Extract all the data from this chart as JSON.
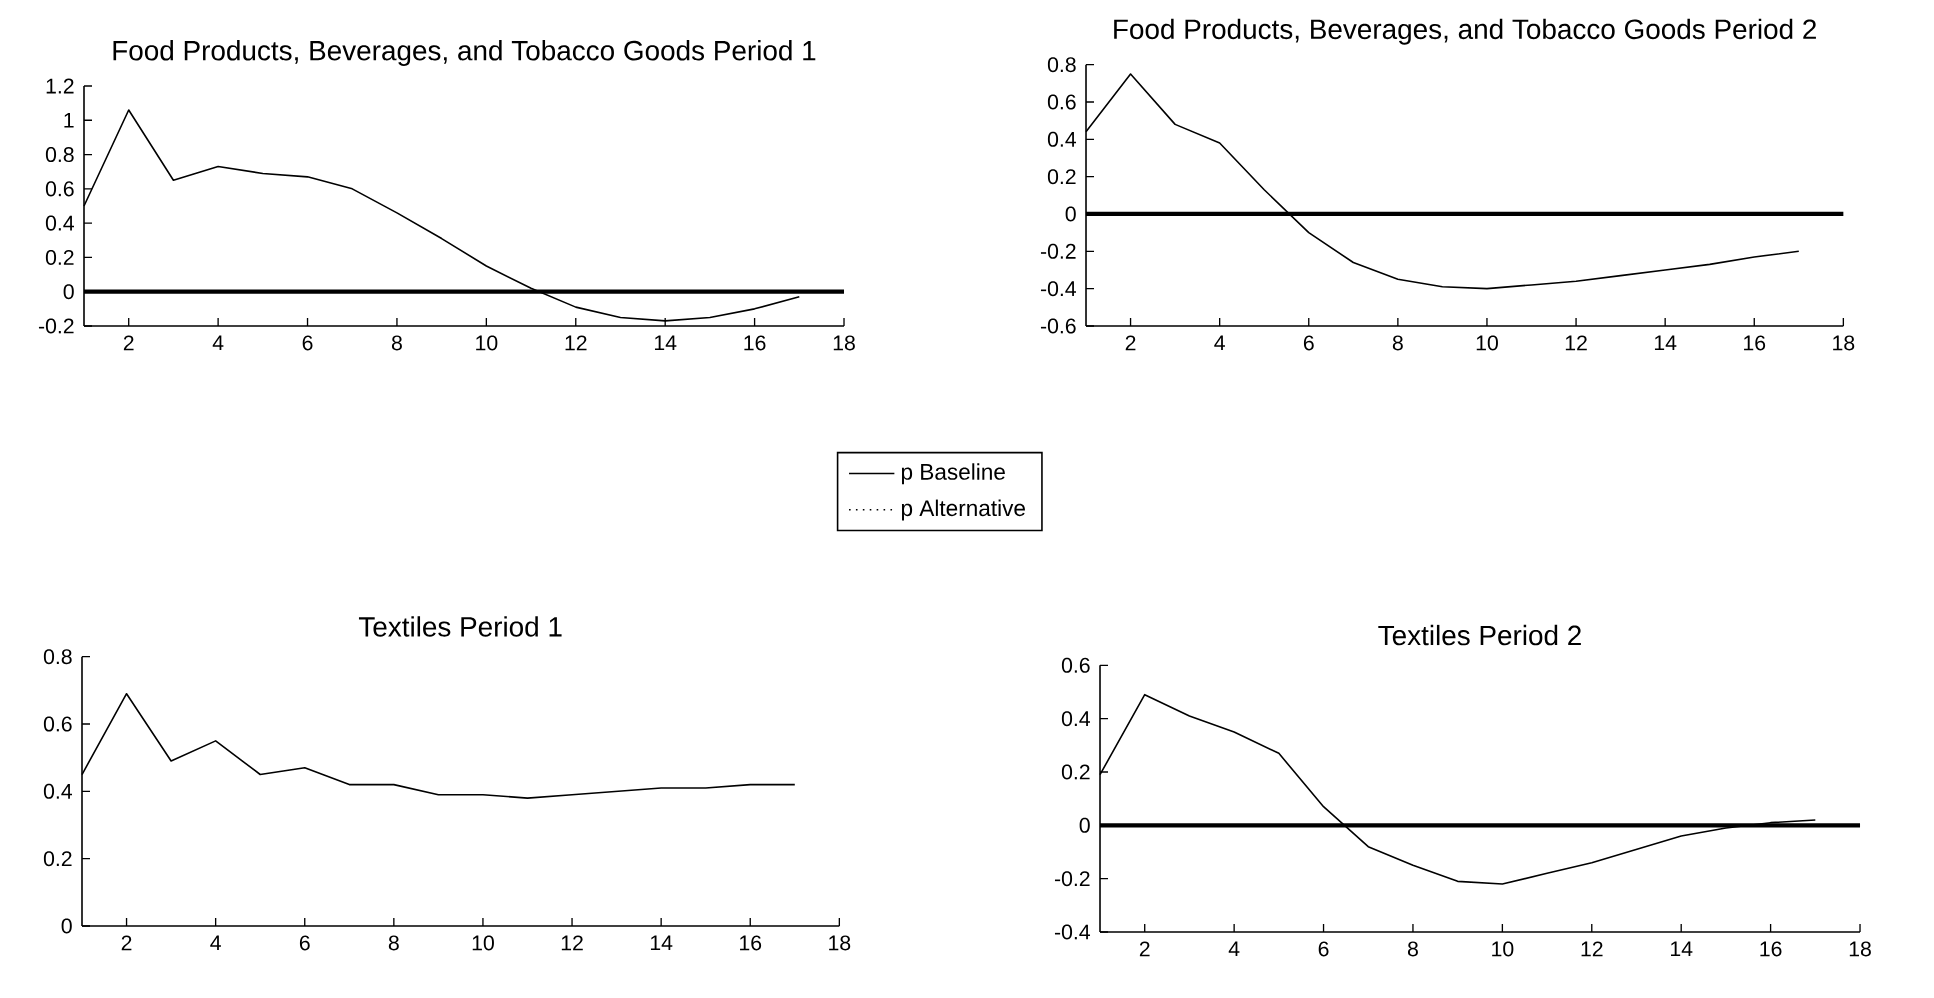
{
  "chart_data": [
    {
      "type": "line",
      "title": "Food Products, Beverages, and Tobacco Goods Period 1",
      "x": [
        1,
        2,
        3,
        4,
        5,
        6,
        7,
        8,
        9,
        10,
        11,
        12,
        13,
        14,
        15,
        16,
        17
      ],
      "series": [
        {
          "name": "p Baseline",
          "color": "#000000",
          "line_style": "solid",
          "values": [
            0.5,
            1.06,
            0.65,
            0.73,
            0.69,
            0.67,
            0.6,
            0.46,
            0.31,
            0.15,
            0.02,
            -0.09,
            -0.15,
            -0.17,
            -0.15,
            -0.1,
            -0.03
          ]
        },
        {
          "name": "p Alternative",
          "color": "#000000",
          "line_style": "dotted",
          "values": [
            null,
            null,
            null,
            null,
            null,
            null,
            null,
            null,
            null,
            null,
            null,
            null,
            null,
            null,
            null,
            null,
            null
          ]
        }
      ],
      "xlim": [
        1,
        18
      ],
      "xticks": [
        2,
        4,
        6,
        8,
        10,
        12,
        14,
        16,
        18
      ],
      "ylim": [
        -0.2,
        1.2
      ],
      "yticks": [
        -0.2,
        0,
        0.2,
        0.4,
        0.6,
        0.8,
        1,
        1.2
      ],
      "ref_lines": [
        {
          "axis": "y",
          "value": 0,
          "color": "#000000"
        }
      ],
      "legend": "bottom"
    },
    {
      "type": "line",
      "title": "Food Products, Beverages, and Tobacco Goods Period 2",
      "x": [
        1,
        2,
        3,
        4,
        5,
        6,
        7,
        8,
        9,
        10,
        11,
        12,
        13,
        14,
        15,
        16,
        17
      ],
      "series": [
        {
          "color": "#000000",
          "values": [
            0.44,
            0.75,
            0.48,
            0.38,
            0.13,
            -0.1,
            -0.26,
            -0.35,
            -0.39,
            -0.4,
            -0.38,
            -0.36,
            -0.33,
            -0.3,
            -0.27,
            -0.23,
            -0.2
          ]
        }
      ],
      "xlim": [
        1,
        18
      ],
      "xticks": [
        2,
        4,
        6,
        8,
        10,
        12,
        14,
        16,
        18
      ],
      "ylim": [
        -0.6,
        0.8
      ],
      "yticks": [
        -0.6,
        -0.4,
        -0.2,
        0,
        0.2,
        0.4,
        0.6,
        0.8
      ],
      "ref_lines": [
        {
          "axis": "y",
          "value": 0,
          "color": "#000000"
        }
      ]
    },
    {
      "type": "line",
      "title": "Textiles Period 1",
      "x": [
        1,
        2,
        3,
        4,
        5,
        6,
        7,
        8,
        9,
        10,
        11,
        12,
        13,
        14,
        15,
        16,
        17
      ],
      "series": [
        {
          "color": "#000000",
          "values": [
            0.45,
            0.69,
            0.49,
            0.55,
            0.45,
            0.47,
            0.42,
            0.42,
            0.39,
            0.39,
            0.38,
            0.39,
            0.4,
            0.41,
            0.41,
            0.42,
            0.42
          ]
        }
      ],
      "xlim": [
        1,
        18
      ],
      "xticks": [
        2,
        4,
        6,
        8,
        10,
        12,
        14,
        16,
        18
      ],
      "ylim": [
        0,
        0.8
      ],
      "yticks": [
        0,
        0.2,
        0.4,
        0.6,
        0.8
      ]
    },
    {
      "type": "line",
      "title": "Textiles Period 2",
      "x": [
        1,
        2,
        3,
        4,
        5,
        6,
        7,
        8,
        9,
        10,
        11,
        12,
        13,
        14,
        15,
        16,
        17
      ],
      "series": [
        {
          "color": "#000000",
          "values": [
            0.19,
            0.49,
            0.41,
            0.35,
            0.27,
            0.07,
            -0.08,
            -0.15,
            -0.21,
            -0.22,
            -0.18,
            -0.14,
            -0.09,
            -0.04,
            -0.01,
            0.01,
            0.02
          ]
        }
      ],
      "xlim": [
        1,
        18
      ],
      "xticks": [
        2,
        4,
        6,
        8,
        10,
        12,
        14,
        16,
        18
      ],
      "ylim": [
        -0.4,
        0.6
      ],
      "yticks": [
        -0.4,
        -0.2,
        0,
        0.2,
        0.4,
        0.6
      ],
      "ref_lines": [
        {
          "axis": "y",
          "value": 0,
          "color": "#000000"
        }
      ]
    }
  ]
}
